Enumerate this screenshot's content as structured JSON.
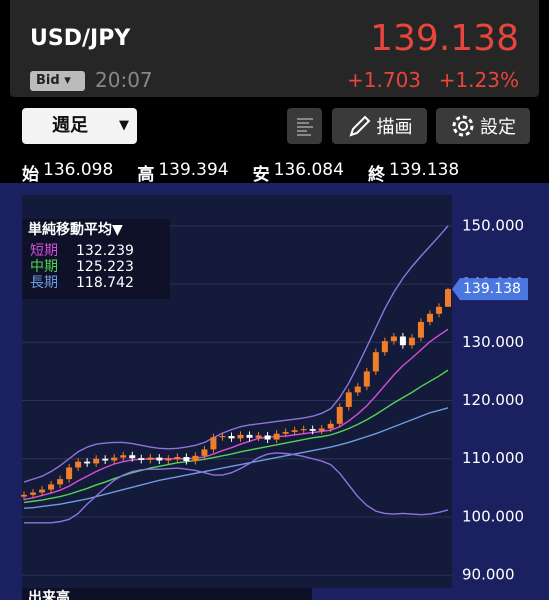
{
  "header": {
    "pair": "USD/JPY",
    "price": "139.138",
    "price_type": "Bid",
    "time": "20:07",
    "change": "+1.703",
    "change_pct": "+1.23%"
  },
  "toolbar": {
    "period": "週足",
    "draw": "描画",
    "settings": "設定"
  },
  "ohlc": [
    {
      "label": "始",
      "value": "136.098"
    },
    {
      "label": "高",
      "value": "139.394"
    },
    {
      "label": "安",
      "value": "136.084"
    },
    {
      "label": "終",
      "value": "139.138"
    }
  ],
  "volume_label": "出来高",
  "chart_data": {
    "type": "candlestick",
    "up_color": "#f07d2a",
    "down_color": "#ffffff",
    "ylim": [
      87.8,
      155.3
    ],
    "yticks": [
      {
        "value": 150,
        "label": "150.000"
      },
      {
        "value": 140,
        "label": "140.000"
      },
      {
        "value": 130,
        "label": "130.000"
      },
      {
        "value": 120,
        "label": "120.000"
      },
      {
        "value": 110,
        "label": "110.000"
      },
      {
        "value": 100,
        "label": "100.000"
      },
      {
        "value": 90,
        "label": "90.000"
      }
    ],
    "grid": true,
    "price_tag": 139.138,
    "open": [
      103.5,
      103.8,
      104.2,
      104.7,
      105.6,
      106.5,
      108.5,
      109.5,
      109.2,
      110.0,
      109.7,
      110.2,
      110.6,
      110.1,
      109.8,
      110.2,
      109.7,
      110.0,
      110.3,
      109.6,
      110.5,
      111.6,
      113.7,
      113.9,
      113.5,
      114.1,
      113.6,
      114.0,
      113.3,
      114.3,
      114.6,
      114.9,
      115.1,
      114.8,
      115.2,
      116.0,
      118.9,
      121.4,
      122.4,
      125.0,
      128.3,
      130.2,
      131.0,
      129.5,
      130.8,
      133.5,
      134.9,
      136.098
    ],
    "high": [
      104.4,
      104.8,
      105.3,
      106.2,
      107.1,
      109.1,
      110.1,
      110.1,
      110.6,
      110.6,
      110.8,
      111.2,
      111.2,
      110.7,
      110.8,
      110.8,
      110.6,
      110.9,
      110.9,
      111.1,
      112.2,
      114.3,
      114.5,
      114.5,
      114.7,
      114.7,
      114.6,
      114.6,
      114.9,
      115.2,
      115.5,
      115.7,
      115.7,
      115.8,
      116.6,
      119.5,
      122.0,
      123.0,
      125.6,
      128.9,
      130.8,
      131.6,
      131.6,
      131.4,
      134.1,
      135.5,
      136.7,
      139.394
    ],
    "low": [
      102.9,
      103.2,
      103.6,
      104.1,
      105.0,
      105.9,
      107.9,
      108.6,
      108.6,
      109.1,
      109.1,
      109.6,
      109.5,
      109.2,
      109.2,
      109.1,
      109.1,
      109.4,
      109.0,
      109.0,
      109.9,
      111.0,
      113.1,
      112.9,
      112.9,
      113.0,
      113.0,
      112.7,
      112.7,
      113.7,
      114.0,
      114.3,
      114.2,
      114.2,
      114.6,
      115.4,
      118.3,
      120.8,
      121.8,
      124.4,
      127.7,
      129.6,
      128.9,
      128.9,
      130.2,
      132.9,
      134.3,
      136.084
    ],
    "close": [
      103.8,
      104.2,
      104.7,
      105.6,
      106.5,
      108.5,
      109.5,
      109.2,
      110.0,
      109.7,
      110.2,
      110.6,
      110.1,
      109.8,
      110.2,
      109.7,
      110.0,
      110.3,
      109.6,
      110.5,
      111.6,
      113.7,
      113.9,
      113.5,
      114.1,
      113.6,
      114.0,
      113.3,
      114.3,
      114.6,
      114.9,
      115.1,
      114.8,
      115.2,
      116.0,
      118.9,
      121.4,
      122.4,
      125.0,
      128.3,
      130.2,
      131.0,
      129.5,
      130.8,
      133.5,
      134.9,
      136.1,
      139.138
    ],
    "ma_legend": {
      "title": "単純移動平均▼",
      "entries": [
        {
          "name": "短期",
          "value": "132.239",
          "color": "#d24fd8"
        },
        {
          "name": "中期",
          "value": "125.223",
          "color": "#52d452"
        },
        {
          "name": "長期",
          "value": "118.742",
          "color": "#6f9be0"
        }
      ]
    },
    "lines": [
      {
        "color": "#d24fd8",
        "values": [
          103.0,
          103.3,
          103.7,
          104.1,
          104.6,
          105.3,
          106.2,
          107.0,
          107.8,
          108.5,
          109.1,
          109.5,
          109.8,
          109.9,
          110.0,
          110.0,
          110.0,
          110.0,
          110.0,
          110.1,
          110.3,
          110.8,
          111.4,
          111.9,
          112.5,
          113.0,
          113.5,
          113.7,
          113.8,
          113.9,
          114.1,
          114.3,
          114.5,
          114.7,
          114.9,
          115.5,
          116.5,
          117.7,
          119.1,
          120.8,
          122.6,
          124.4,
          126.0,
          127.3,
          128.7,
          130.1,
          131.2,
          132.239
        ]
      },
      {
        "color": "#52d452",
        "values": [
          102.5,
          102.7,
          102.9,
          103.2,
          103.5,
          103.9,
          104.4,
          104.9,
          105.5,
          106.0,
          106.6,
          107.1,
          107.6,
          108.0,
          108.4,
          108.7,
          109.0,
          109.3,
          109.5,
          109.7,
          109.9,
          110.2,
          110.5,
          110.8,
          111.2,
          111.5,
          111.8,
          112.1,
          112.4,
          112.7,
          113.0,
          113.3,
          113.6,
          113.8,
          114.1,
          114.6,
          115.2,
          115.9,
          116.7,
          117.6,
          118.6,
          119.6,
          120.5,
          121.4,
          122.4,
          123.3,
          124.2,
          125.223
        ]
      },
      {
        "color": "#6f9be0",
        "values": [
          101.5,
          101.6,
          101.8,
          102.0,
          102.2,
          102.5,
          102.8,
          103.1,
          103.5,
          103.9,
          104.3,
          104.7,
          105.1,
          105.5,
          105.9,
          106.3,
          106.6,
          106.9,
          107.2,
          107.5,
          107.8,
          108.1,
          108.4,
          108.7,
          109.0,
          109.3,
          109.6,
          109.9,
          110.2,
          110.5,
          110.8,
          111.1,
          111.4,
          111.7,
          112.0,
          112.4,
          112.8,
          113.3,
          113.8,
          114.3,
          114.9,
          115.5,
          116.1,
          116.7,
          117.3,
          117.9,
          118.3,
          118.742
        ]
      },
      {
        "color": "#8f74e0",
        "values": [
          106.0,
          106.5,
          107.0,
          107.8,
          108.8,
          110.0,
          111.2,
          112.0,
          112.5,
          112.7,
          112.8,
          112.8,
          112.6,
          112.3,
          112.0,
          111.8,
          111.7,
          111.8,
          112.0,
          112.3,
          112.8,
          113.6,
          114.4,
          115.0,
          115.5,
          115.8,
          116.0,
          116.2,
          116.4,
          116.6,
          116.8,
          117.0,
          117.3,
          117.8,
          118.6,
          120.5,
          123.0,
          126.0,
          129.2,
          132.5,
          135.8,
          138.6,
          141.0,
          143.0,
          144.8,
          146.5,
          148.2,
          150.0
        ]
      },
      {
        "color": "#8f74e0",
        "values": [
          99.0,
          99.0,
          99.0,
          99.0,
          99.2,
          99.6,
          100.6,
          102.2,
          103.6,
          105.0,
          106.3,
          107.2,
          107.8,
          108.1,
          108.2,
          108.2,
          108.3,
          108.4,
          108.2,
          108.0,
          107.6,
          107.2,
          107.2,
          107.6,
          108.3,
          109.2,
          110.2,
          110.8,
          111.0,
          110.9,
          110.7,
          110.4,
          110.0,
          109.6,
          109.0,
          107.5,
          105.5,
          103.5,
          102.0,
          101.0,
          100.6,
          100.5,
          100.6,
          100.5,
          100.4,
          100.5,
          100.8,
          101.2
        ]
      }
    ]
  }
}
